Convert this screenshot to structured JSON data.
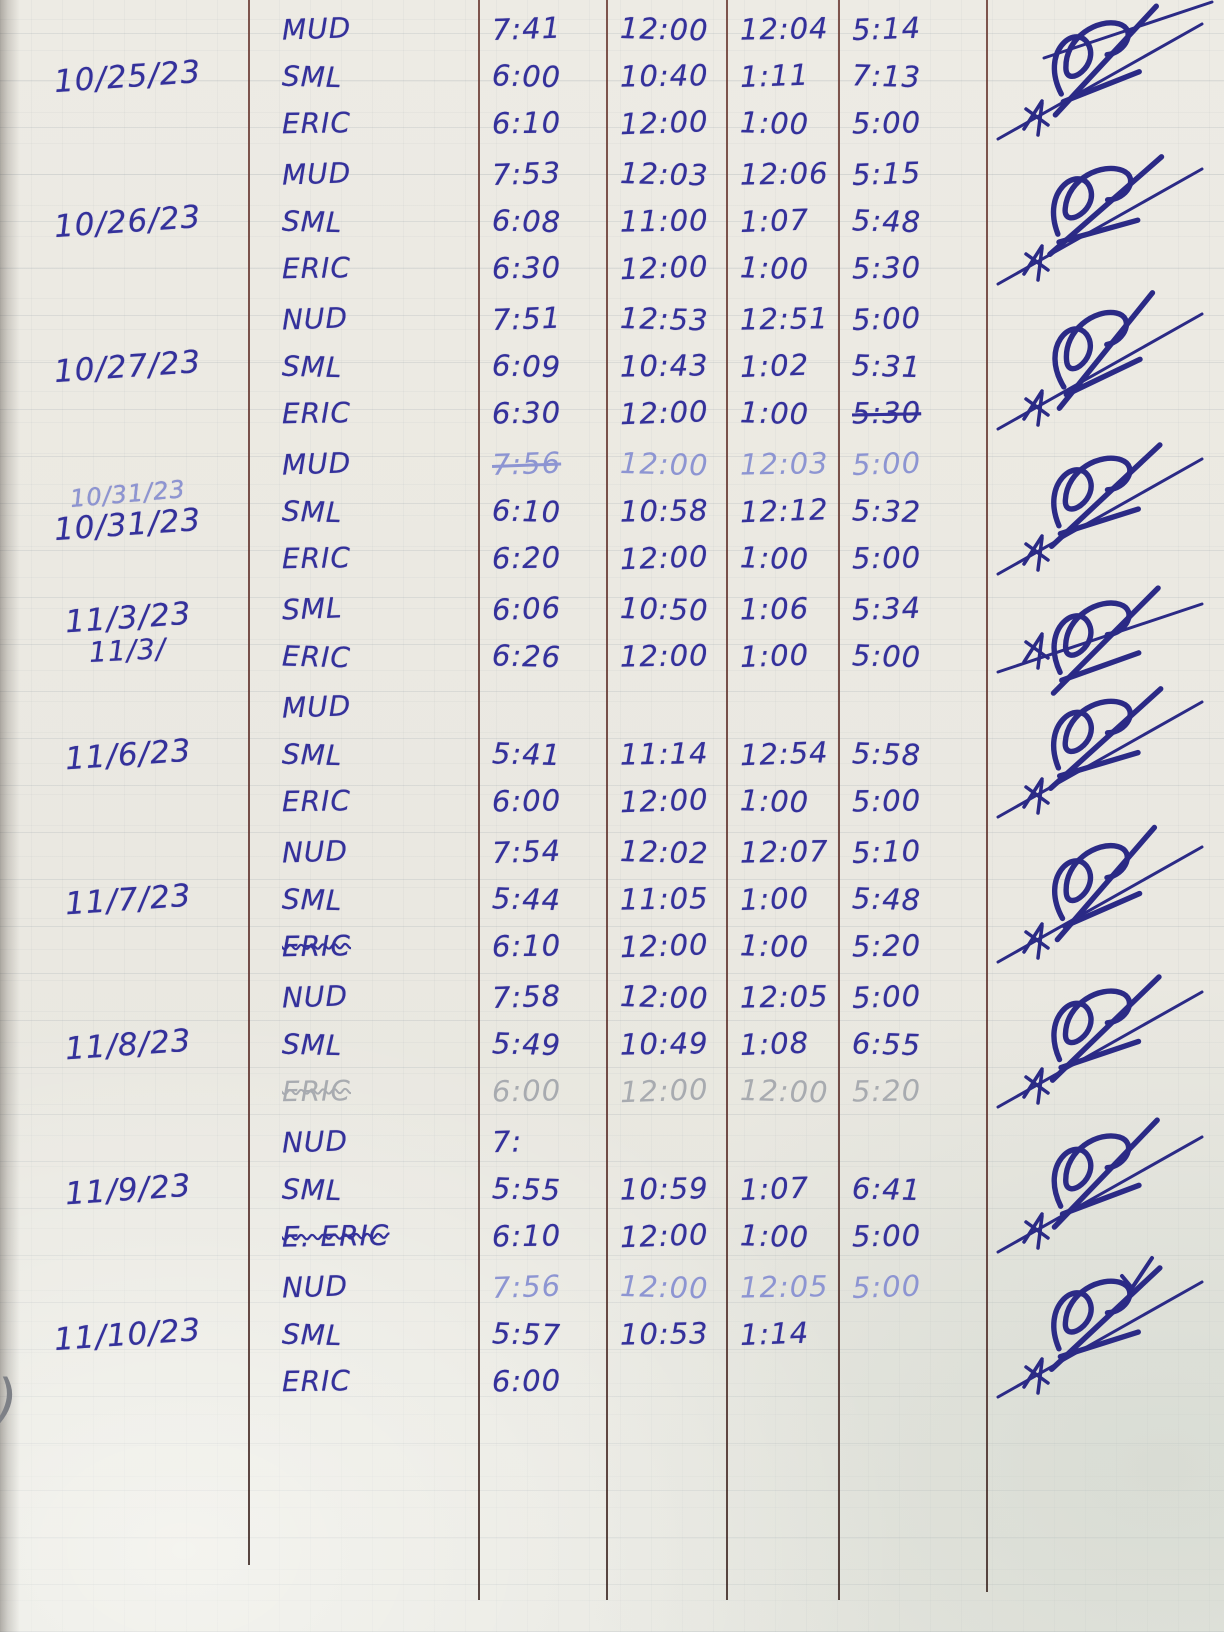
{
  "timesheet": {
    "blocks": [
      {
        "date": "10/25/23",
        "date_ghost": "",
        "date_partial": "",
        "rows": [
          {
            "name": "MUD",
            "ink": "normal",
            "name_strike": false,
            "strikes": [],
            "times": [
              "7:41",
              "12:00",
              "12:04",
              "5:14"
            ]
          },
          {
            "name": "SML",
            "ink": "normal",
            "name_strike": false,
            "strikes": [],
            "times": [
              "6:00",
              "10:40",
              "1:11",
              "7:13"
            ]
          },
          {
            "name": "ERIC",
            "ink": "normal",
            "name_strike": false,
            "strikes": [],
            "times": [
              "6:10",
              "12:00",
              "1:00",
              "5:00"
            ]
          }
        ]
      },
      {
        "date": "10/26/23",
        "date_ghost": "",
        "date_partial": "",
        "rows": [
          {
            "name": "MUD",
            "ink": "normal",
            "name_strike": false,
            "strikes": [],
            "times": [
              "7:53",
              "12:03",
              "12:06",
              "5:15"
            ]
          },
          {
            "name": "SML",
            "ink": "normal",
            "name_strike": false,
            "strikes": [],
            "times": [
              "6:08",
              "11:00",
              "1:07",
              "5:48"
            ]
          },
          {
            "name": "ERIC",
            "ink": "normal",
            "name_strike": false,
            "strikes": [],
            "times": [
              "6:30",
              "12:00",
              "1:00",
              "5:30"
            ]
          }
        ]
      },
      {
        "date": "10/27/23",
        "date_ghost": "",
        "date_partial": "",
        "rows": [
          {
            "name": "NUD",
            "ink": "normal",
            "name_strike": false,
            "strikes": [],
            "times": [
              "7:51",
              "12:53",
              "12:51",
              "5:00"
            ]
          },
          {
            "name": "SML",
            "ink": "normal",
            "name_strike": false,
            "strikes": [],
            "times": [
              "6:09",
              "10:43",
              "1:02",
              "5:31"
            ]
          },
          {
            "name": "ERIC",
            "ink": "normal",
            "name_strike": false,
            "strikes": [
              3
            ],
            "times": [
              "6:30",
              "12:00",
              "1:00",
              "5:30"
            ]
          }
        ]
      },
      {
        "date": "10/31/23",
        "date_ghost": "10/31/23",
        "date_partial": "",
        "rows": [
          {
            "name": "MUD",
            "ink": "light",
            "name_strike": false,
            "strikes": [
              0
            ],
            "times": [
              "7:56",
              "12:00",
              "12:03",
              "5:00"
            ]
          },
          {
            "name": "SML",
            "ink": "normal",
            "name_strike": false,
            "strikes": [],
            "times": [
              "6:10",
              "10:58",
              "12:12",
              "5:32"
            ]
          },
          {
            "name": "ERIC",
            "ink": "normal",
            "name_strike": false,
            "strikes": [],
            "times": [
              "6:20",
              "12:00",
              "1:00",
              "5:00"
            ]
          }
        ]
      },
      {
        "date": "11/3/23",
        "date_ghost": "",
        "date_partial": "11/3/",
        "rows": [
          {
            "name": "SML",
            "ink": "normal",
            "name_strike": false,
            "strikes": [],
            "times": [
              "6:06",
              "10:50",
              "1:06",
              "5:34"
            ]
          },
          {
            "name": "ERIC",
            "ink": "normal",
            "name_strike": false,
            "strikes": [],
            "times": [
              "6:26",
              "12:00",
              "1:00",
              "5:00"
            ]
          }
        ]
      },
      {
        "date": "11/6/23",
        "date_ghost": "",
        "date_partial": "",
        "rows": [
          {
            "name": "MUD",
            "ink": "normal",
            "name_strike": false,
            "strikes": [],
            "times": [
              "",
              "",
              "",
              ""
            ]
          },
          {
            "name": "SML",
            "ink": "normal",
            "name_strike": false,
            "strikes": [],
            "times": [
              "5:41",
              "11:14",
              "12:54",
              "5:58"
            ]
          },
          {
            "name": "ERIC",
            "ink": "normal",
            "name_strike": false,
            "strikes": [],
            "times": [
              "6:00",
              "12:00",
              "1:00",
              "5:00"
            ]
          }
        ]
      },
      {
        "date": "11/7/23",
        "date_ghost": "",
        "date_partial": "",
        "rows": [
          {
            "name": "NUD",
            "ink": "normal",
            "name_strike": false,
            "strikes": [],
            "times": [
              "7:54",
              "12:02",
              "12:07",
              "5:10"
            ]
          },
          {
            "name": "SML",
            "ink": "normal",
            "name_strike": false,
            "strikes": [],
            "times": [
              "5:44",
              "11:05",
              "1:00",
              "5:48"
            ]
          },
          {
            "name": "ERIC",
            "ink": "normal",
            "name_strike": true,
            "strikes": [],
            "times": [
              "6:10",
              "12:00",
              "1:00",
              "5:20"
            ]
          }
        ]
      },
      {
        "date": "11/8/23",
        "date_ghost": "",
        "date_partial": "",
        "rows": [
          {
            "name": "NUD",
            "ink": "normal",
            "name_strike": false,
            "strikes": [],
            "times": [
              "7:58",
              "12:00",
              "12:05",
              "5:00"
            ]
          },
          {
            "name": "SML",
            "ink": "normal",
            "name_strike": false,
            "strikes": [],
            "times": [
              "5:49",
              "10:49",
              "1:08",
              "6:55"
            ]
          },
          {
            "name": "ERIC",
            "ink": "faint",
            "name_strike": true,
            "strikes": [],
            "times": [
              "6:00",
              "12:00",
              "12:00",
              "5:20"
            ]
          }
        ]
      },
      {
        "date": "11/9/23",
        "date_ghost": "",
        "date_partial": "",
        "rows": [
          {
            "name": "NUD",
            "ink": "normal",
            "name_strike": false,
            "strikes": [],
            "times": [
              "7:",
              "",
              "",
              ""
            ]
          },
          {
            "name": "SML",
            "ink": "normal",
            "name_strike": false,
            "strikes": [],
            "times": [
              "5:55",
              "10:59",
              "1:07",
              "6:41"
            ]
          },
          {
            "name": "E. ERIC",
            "ink": "normal",
            "name_strike": true,
            "strikes": [],
            "times": [
              "6:10",
              "12:00",
              "1:00",
              "5:00"
            ]
          }
        ]
      },
      {
        "date": "11/10/23",
        "date_ghost": "",
        "date_partial": "",
        "rows": [
          {
            "name": "NUD",
            "ink": "light",
            "name_strike": false,
            "strikes": [],
            "times": [
              "7:56",
              "12:00",
              "12:05",
              "5:00"
            ]
          },
          {
            "name": "SML",
            "ink": "normal",
            "name_strike": false,
            "strikes": [],
            "times": [
              "5:57",
              "10:53",
              "1:14",
              ""
            ]
          },
          {
            "name": "ERIC",
            "ink": "normal",
            "name_strike": false,
            "strikes": [],
            "times": [
              "6:00",
              "",
              "",
              ""
            ]
          }
        ]
      }
    ],
    "signature_note": "illegible signature scribble with strike-through on every date block"
  },
  "stray_marks": {
    "left_margin_paren": ")",
    "checkmark_mid": "✓",
    "checkmark_bottom": "✓"
  }
}
